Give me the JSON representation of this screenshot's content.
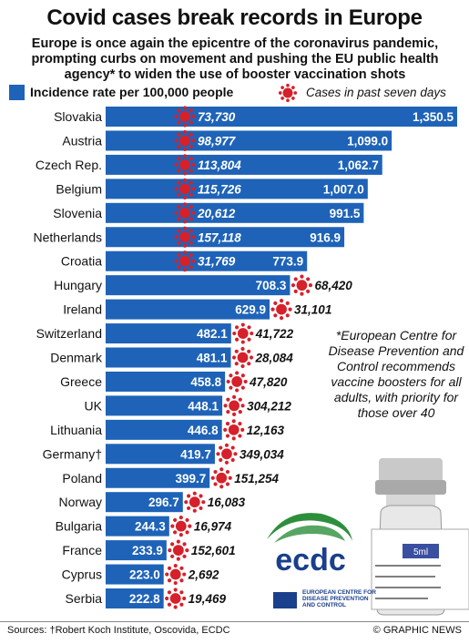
{
  "title": "Covid cases break records in Europe",
  "subtitle": "Europe is once again the epicentre of the coronavirus pandemic, prompting curbs on movement and pushing the EU public health agency* to widen the use of booster vaccination shots",
  "legend": {
    "bar_label": "Incidence rate per 100,000 people",
    "cases_label": "Cases in past seven days",
    "bar_color": "#1e63b8",
    "virus_color": "#d6202a"
  },
  "note": "*European Centre for Disease Prevention and Control recommends vaccine boosters for all adults, with priority for those over 40",
  "vial_label": "5ml",
  "ecdc": {
    "logo_text": "ecdc",
    "full_name": "EUROPEAN CENTRE FOR DISEASE PREVENTION AND CONTROL"
  },
  "sources": "Sources: †Robert Koch Institute, Oscovida, ECDC",
  "credit": "© GRAPHIC NEWS",
  "chart_data": {
    "type": "bar",
    "orientation": "horizontal",
    "categories": [
      "Slovakia",
      "Austria",
      "Czech Rep.",
      "Belgium",
      "Slovenia",
      "Netherlands",
      "Croatia",
      "Hungary",
      "Ireland",
      "Switzerland",
      "Denmark",
      "Greece",
      "UK",
      "Lithuania",
      "Germany†",
      "Poland",
      "Norway",
      "Bulgaria",
      "France",
      "Cyprus",
      "Serbia"
    ],
    "series": [
      {
        "name": "Incidence rate per 100,000 people",
        "values": [
          1350.5,
          1099.0,
          1062.7,
          1007.0,
          991.5,
          916.9,
          773.9,
          708.3,
          629.9,
          482.1,
          481.1,
          458.8,
          448.1,
          446.8,
          419.7,
          399.7,
          296.7,
          244.3,
          233.9,
          223.0,
          222.8
        ],
        "value_labels": [
          "1,350.5",
          "1,099.0",
          "1,062.7",
          "1,007.0",
          "991.5",
          "916.9",
          "773.9",
          "708.3",
          "629.9",
          "482.1",
          "481.1",
          "458.8",
          "448.1",
          "446.8",
          "419.7",
          "399.7",
          "296.7",
          "244.3",
          "233.9",
          "223.0",
          "222.8"
        ]
      },
      {
        "name": "Cases in past seven days",
        "values": [
          73730,
          98977,
          113804,
          115726,
          20612,
          157118,
          31769,
          68420,
          31101,
          41722,
          28084,
          47820,
          304212,
          12163,
          349034,
          151254,
          16083,
          16974,
          152601,
          2692,
          19469
        ],
        "value_labels": [
          "73,730",
          "98,977",
          "113,804",
          "115,726",
          "20,612",
          "157,118",
          "31,769",
          "68,420",
          "31,101",
          "41,722",
          "28,084",
          "47,820",
          "304,212",
          "12,163",
          "349,034",
          "151,254",
          "16,083",
          "16,974",
          "152,601",
          "2,692",
          "19,469"
        ]
      }
    ],
    "xlim": [
      0,
      1350.5
    ],
    "grid": false,
    "legend_position": "top"
  }
}
